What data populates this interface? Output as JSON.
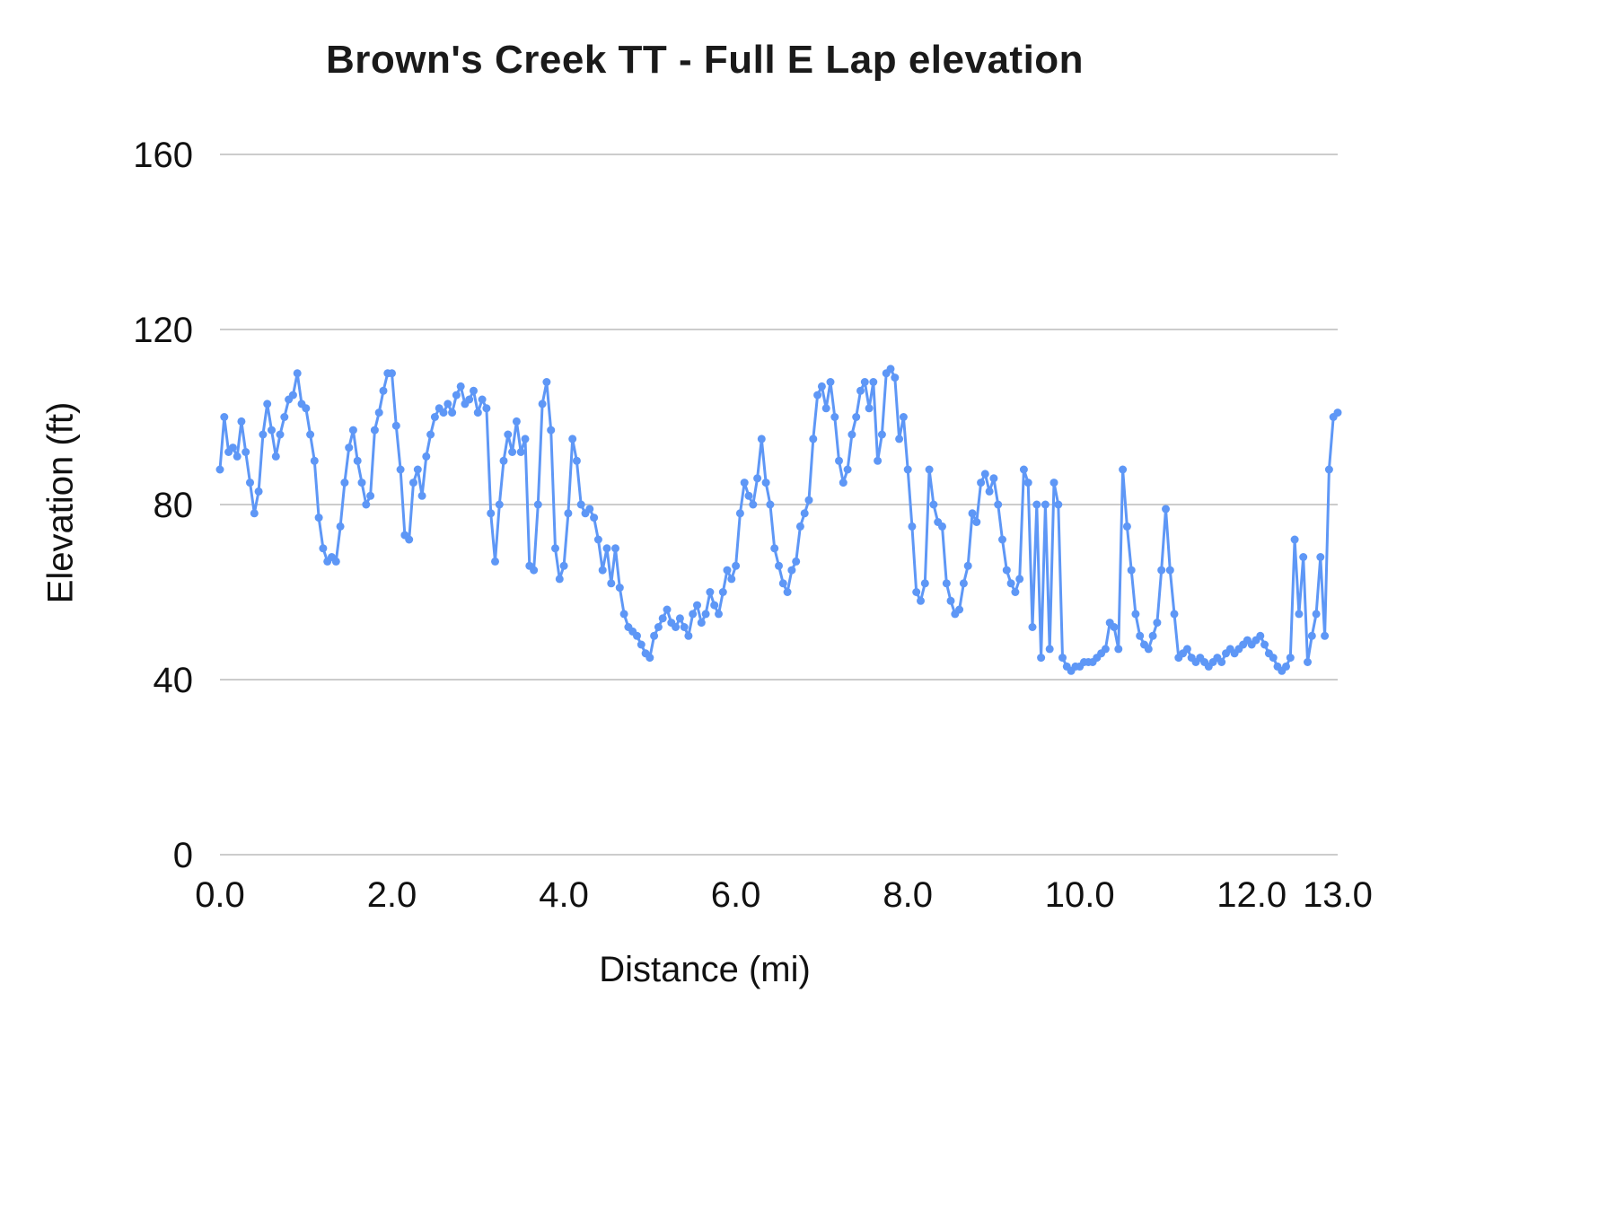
{
  "chart_data": {
    "type": "line",
    "title": "Brown's Creek TT - Full E Lap elevation",
    "xlabel": "Distance (mi)",
    "ylabel": "Elevation (ft)",
    "xlim": [
      0,
      13
    ],
    "ylim": [
      0,
      160
    ],
    "x_ticks": [
      0,
      2,
      4,
      6,
      8,
      10,
      12,
      13
    ],
    "x_tick_labels": [
      "0.0",
      "2.0",
      "4.0",
      "6.0",
      "8.0",
      "10.0",
      "12.0",
      "13.0"
    ],
    "y_ticks": [
      0,
      40,
      80,
      120,
      160
    ],
    "y_tick_labels": [
      "0",
      "40",
      "80",
      "120",
      "160"
    ],
    "grid": "horizontal",
    "legend": "none",
    "line_color": "#5e97f6",
    "marker": "circle",
    "x_start": 0,
    "x_step": 0.05,
    "elevations_ft": [
      88,
      100,
      92,
      93,
      91,
      99,
      92,
      85,
      78,
      83,
      96,
      103,
      97,
      91,
      96,
      100,
      104,
      105,
      110,
      103,
      102,
      96,
      90,
      77,
      70,
      67,
      68,
      67,
      75,
      85,
      93,
      97,
      90,
      85,
      80,
      82,
      97,
      101,
      106,
      110,
      110,
      98,
      88,
      73,
      72,
      85,
      88,
      82,
      91,
      96,
      100,
      102,
      101,
      103,
      101,
      105,
      107,
      103,
      104,
      106,
      101,
      104,
      102,
      78,
      67,
      80,
      90,
      96,
      92,
      99,
      92,
      95,
      66,
      65,
      80,
      103,
      108,
      97,
      70,
      63,
      66,
      78,
      95,
      90,
      80,
      78,
      79,
      77,
      72,
      65,
      70,
      62,
      70,
      61,
      55,
      52,
      51,
      50,
      48,
      46,
      45,
      50,
      52,
      54,
      56,
      53,
      52,
      54,
      52,
      50,
      55,
      57,
      53,
      55,
      60,
      57,
      55,
      60,
      65,
      63,
      66,
      78,
      85,
      82,
      80,
      86,
      95,
      85,
      80,
      70,
      66,
      62,
      60,
      65,
      67,
      75,
      78,
      81,
      95,
      105,
      107,
      102,
      108,
      100,
      90,
      85,
      88,
      96,
      100,
      106,
      108,
      102,
      108,
      90,
      96,
      110,
      111,
      109,
      95,
      100,
      88,
      75,
      60,
      58,
      62,
      88,
      80,
      76,
      75,
      62,
      58,
      55,
      56,
      62,
      66,
      78,
      76,
      85,
      87,
      83,
      86,
      80,
      72,
      65,
      62,
      60,
      63,
      88,
      85,
      52,
      80,
      45,
      80,
      47,
      85,
      80,
      45,
      43,
      42,
      43,
      43,
      44,
      44,
      44,
      45,
      46,
      47,
      53,
      52,
      47,
      88,
      75,
      65,
      55,
      50,
      48,
      47,
      50,
      53,
      65,
      79,
      65,
      55,
      45,
      46,
      47,
      45,
      44,
      45,
      44,
      43,
      44,
      45,
      44,
      46,
      47,
      46,
      47,
      48,
      49,
      48,
      49,
      50,
      48,
      46,
      45,
      43,
      42,
      43,
      45,
      72,
      55,
      68,
      44,
      50,
      55,
      68,
      50,
      88,
      100,
      101
    ]
  }
}
